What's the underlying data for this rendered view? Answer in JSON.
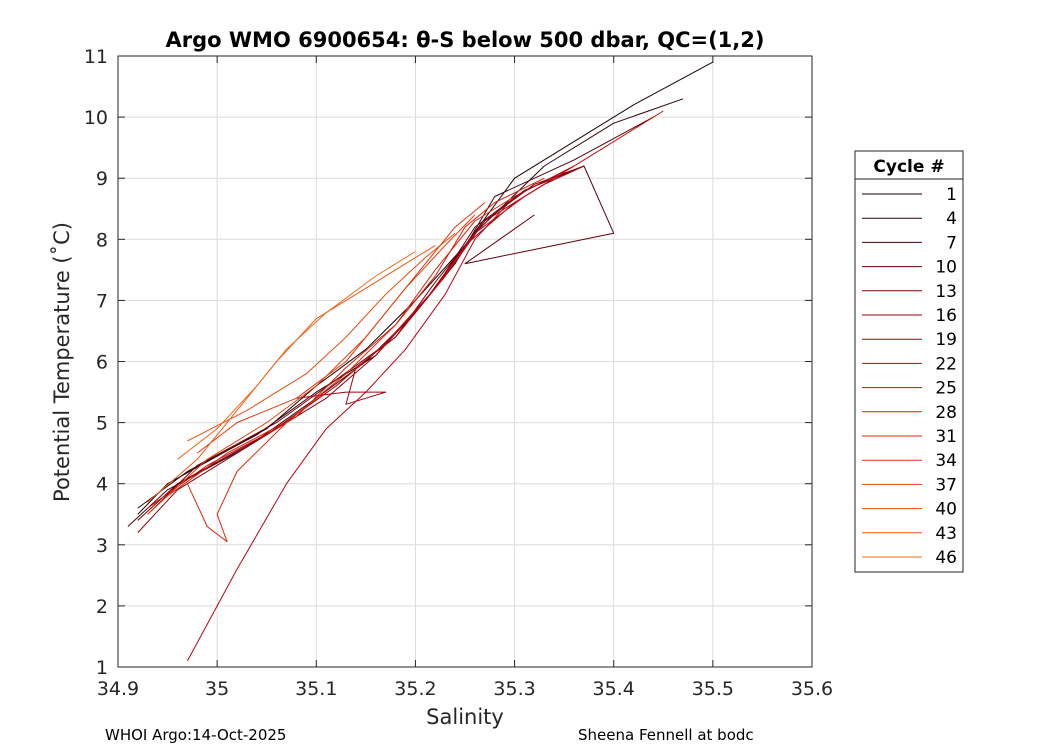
{
  "chart_data": {
    "type": "line",
    "title": "Argo WMO 6900654: θ-S below 500 dbar,  QC=(1,2)",
    "xlabel": "Salinity",
    "ylabel": "Potential Temperature (˚C)",
    "xlim": [
      34.9,
      35.6
    ],
    "ylim": [
      1,
      11
    ],
    "x_ticks": [
      "34.9",
      "35",
      "35.1",
      "35.2",
      "35.3",
      "35.4",
      "35.5",
      "35.6"
    ],
    "y_ticks": [
      "1",
      "2",
      "3",
      "4",
      "5",
      "6",
      "7",
      "8",
      "9",
      "10",
      "11"
    ],
    "grid": true,
    "legend": {
      "title": "Cycle #",
      "position": "right",
      "entries": [
        "1",
        "4",
        "7",
        "10",
        "13",
        "16",
        "19",
        "22",
        "25",
        "28",
        "31",
        "34",
        "37",
        "40",
        "43",
        "46"
      ],
      "colors": [
        "#1a0000",
        "#330006",
        "#4a0008",
        "#61000a",
        "#78000b",
        "#8f000c",
        "#a6000d",
        "#bc0010",
        "#cc0a0a",
        "#d81a0a",
        "#e0270a",
        "#e4330c",
        "#e8400c",
        "#eb4d10",
        "#ee5a14",
        "#f06a1c"
      ]
    },
    "series": [
      {
        "name": "1",
        "points": [
          [
            34.92,
            3.5
          ],
          [
            34.95,
            4.0
          ],
          [
            35.05,
            4.9
          ],
          [
            35.1,
            5.6
          ],
          [
            35.15,
            6.2
          ],
          [
            35.2,
            7.0
          ],
          [
            35.25,
            7.9
          ],
          [
            35.3,
            9.0
          ],
          [
            35.38,
            9.8
          ],
          [
            35.42,
            10.2
          ],
          [
            35.5,
            10.9
          ]
        ]
      },
      {
        "name": "4",
        "points": [
          [
            34.92,
            3.6
          ],
          [
            34.97,
            4.2
          ],
          [
            35.04,
            4.8
          ],
          [
            35.1,
            5.5
          ],
          [
            35.16,
            6.1
          ],
          [
            35.21,
            7.0
          ],
          [
            35.26,
            8.1
          ],
          [
            35.33,
            9.2
          ],
          [
            35.4,
            9.9
          ],
          [
            35.47,
            10.3
          ]
        ]
      },
      {
        "name": "7",
        "points": [
          [
            34.91,
            3.3
          ],
          [
            34.95,
            3.9
          ],
          [
            35.03,
            4.6
          ],
          [
            35.1,
            5.4
          ],
          [
            35.15,
            6.0
          ],
          [
            35.2,
            6.8
          ],
          [
            35.24,
            7.6
          ],
          [
            35.28,
            8.7
          ],
          [
            35.36,
            9.3
          ],
          [
            35.44,
            10.0
          ]
        ]
      },
      {
        "name": "10",
        "points": [
          [
            34.92,
            3.4
          ],
          [
            34.96,
            4.0
          ],
          [
            35.05,
            4.8
          ],
          [
            35.12,
            5.6
          ],
          [
            35.17,
            6.3
          ],
          [
            35.22,
            7.2
          ],
          [
            35.26,
            8.2
          ],
          [
            35.31,
            8.8
          ],
          [
            35.37,
            9.2
          ],
          [
            35.4,
            8.1
          ],
          [
            35.25,
            7.6
          ],
          [
            35.32,
            8.4
          ]
        ]
      },
      {
        "name": "13",
        "points": [
          [
            34.93,
            3.5
          ],
          [
            34.98,
            4.3
          ],
          [
            35.06,
            5.0
          ],
          [
            35.12,
            5.7
          ],
          [
            35.18,
            6.4
          ],
          [
            35.22,
            7.3
          ],
          [
            35.27,
            8.3
          ],
          [
            35.32,
            8.9
          ],
          [
            35.37,
            9.2
          ]
        ]
      },
      {
        "name": "16",
        "points": [
          [
            34.92,
            3.2
          ],
          [
            34.96,
            3.9
          ],
          [
            35.04,
            4.7
          ],
          [
            35.11,
            5.4
          ],
          [
            35.16,
            6.1
          ],
          [
            35.21,
            7.0
          ],
          [
            35.25,
            7.9
          ],
          [
            35.3,
            8.6
          ],
          [
            35.35,
            9.1
          ]
        ]
      },
      {
        "name": "19",
        "points": [
          [
            35.08,
            5.4
          ],
          [
            35.13,
            5.5
          ],
          [
            35.17,
            5.5
          ],
          [
            35.13,
            5.3
          ],
          [
            35.14,
            5.9
          ],
          [
            35.18,
            6.4
          ],
          [
            35.23,
            7.4
          ],
          [
            35.27,
            8.3
          ],
          [
            35.33,
            8.9
          ],
          [
            35.37,
            9.2
          ]
        ]
      },
      {
        "name": "22",
        "points": [
          [
            34.97,
            1.1
          ],
          [
            35.02,
            2.6
          ],
          [
            35.07,
            4.0
          ],
          [
            35.11,
            4.9
          ],
          [
            35.15,
            5.5
          ],
          [
            35.19,
            6.2
          ],
          [
            35.23,
            7.1
          ],
          [
            35.26,
            8.0
          ],
          [
            35.3,
            8.7
          ],
          [
            35.36,
            9.2
          ]
        ]
      },
      {
        "name": "25",
        "points": [
          [
            34.93,
            3.6
          ],
          [
            34.99,
            4.3
          ],
          [
            35.06,
            4.9
          ],
          [
            35.12,
            5.6
          ],
          [
            35.17,
            6.3
          ],
          [
            35.22,
            7.2
          ],
          [
            35.26,
            8.1
          ],
          [
            35.31,
            8.7
          ],
          [
            35.38,
            9.4
          ],
          [
            35.45,
            10.1
          ]
        ]
      },
      {
        "name": "28",
        "points": [
          [
            34.95,
            3.8
          ],
          [
            35.01,
            4.5
          ],
          [
            35.08,
            5.1
          ],
          [
            35.13,
            5.9
          ],
          [
            35.18,
            6.6
          ],
          [
            35.22,
            7.4
          ],
          [
            35.25,
            8.2
          ],
          [
            35.28,
            8.6
          ],
          [
            35.33,
            9.0
          ]
        ]
      },
      {
        "name": "31",
        "points": [
          [
            34.97,
            4.0
          ],
          [
            34.99,
            3.3
          ],
          [
            35.01,
            3.05
          ],
          [
            35.0,
            3.5
          ],
          [
            35.02,
            4.2
          ],
          [
            35.07,
            5.0
          ],
          [
            35.13,
            5.8
          ],
          [
            35.18,
            6.6
          ],
          [
            35.22,
            7.5
          ],
          [
            35.26,
            8.3
          ],
          [
            35.3,
            8.7
          ]
        ]
      },
      {
        "name": "34",
        "points": [
          [
            34.98,
            4.5
          ],
          [
            35.02,
            5.0
          ],
          [
            35.08,
            5.4
          ],
          [
            35.13,
            6.0
          ],
          [
            35.17,
            6.8
          ],
          [
            35.21,
            7.6
          ],
          [
            35.24,
            8.2
          ],
          [
            35.27,
            8.6
          ]
        ]
      },
      {
        "name": "37",
        "points": [
          [
            34.93,
            3.5
          ],
          [
            34.99,
            4.4
          ],
          [
            35.05,
            5.0
          ],
          [
            35.1,
            5.6
          ],
          [
            35.15,
            6.4
          ],
          [
            35.19,
            7.2
          ],
          [
            35.23,
            7.9
          ],
          [
            35.26,
            8.4
          ]
        ]
      },
      {
        "name": "40",
        "points": [
          [
            34.97,
            4.7
          ],
          [
            35.03,
            5.2
          ],
          [
            35.09,
            5.8
          ],
          [
            35.13,
            6.4
          ],
          [
            35.17,
            7.1
          ],
          [
            35.21,
            7.7
          ],
          [
            35.24,
            8.1
          ]
        ]
      },
      {
        "name": "43",
        "points": [
          [
            34.93,
            3.7
          ],
          [
            34.98,
            4.4
          ],
          [
            35.03,
            5.4
          ],
          [
            35.06,
            6.0
          ],
          [
            35.1,
            6.7
          ],
          [
            35.15,
            7.2
          ],
          [
            35.19,
            7.6
          ],
          [
            35.22,
            7.9
          ]
        ]
      },
      {
        "name": "46",
        "points": [
          [
            34.96,
            4.4
          ],
          [
            35.0,
            4.9
          ],
          [
            35.04,
            5.6
          ],
          [
            35.07,
            6.2
          ],
          [
            35.11,
            6.8
          ],
          [
            35.16,
            7.4
          ],
          [
            35.2,
            7.8
          ]
        ]
      }
    ]
  },
  "footer": {
    "left": "WHOI Argo:14-Oct-2025",
    "right": "Sheena Fennell at bodc"
  }
}
